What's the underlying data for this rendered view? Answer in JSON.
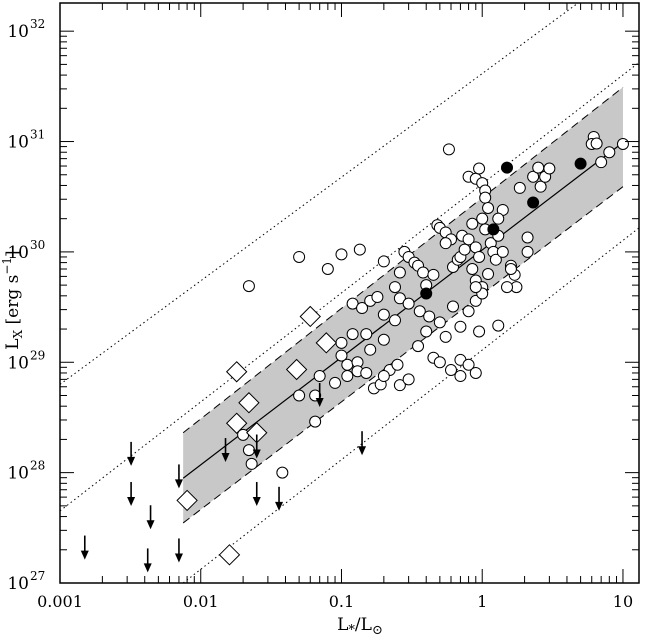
{
  "chart_data": {
    "type": "scatter",
    "title": "",
    "xlabel": "L*/L⊙",
    "ylabel": "L_X [erg s^-1]",
    "x_scale": "log",
    "y_scale": "log",
    "xlim": [
      0.001,
      13
    ],
    "ylim": [
      1e+27,
      1.8e+32
    ],
    "grid": false,
    "legend": "none",
    "x_ticks": [
      {
        "value": 0.001,
        "label": "0.001"
      },
      {
        "value": 0.01,
        "label": "0.01"
      },
      {
        "value": 0.1,
        "label": "0.1"
      },
      {
        "value": 1,
        "label": "1"
      },
      {
        "value": 10,
        "label": "10"
      }
    ],
    "y_ticks": [
      {
        "value": 1e+27,
        "base": "10",
        "exp": "27"
      },
      {
        "value": 1e+28,
        "base": "10",
        "exp": "28"
      },
      {
        "value": 1e+29,
        "base": "10",
        "exp": "29"
      },
      {
        "value": 1e+30,
        "base": "10",
        "exp": "30"
      },
      {
        "value": 1e+31,
        "base": "10",
        "exp": "31"
      },
      {
        "value": 1e+32,
        "base": "10",
        "exp": "32"
      }
    ],
    "fit_line": {
      "x": [
        0.0075,
        10
      ],
      "y": [
        8.9e+27,
        9.8e+30
      ]
    },
    "band": {
      "x": [
        0.0075,
        10
      ],
      "y_low": [
        3.5e+27,
        3.9e+30
      ],
      "y_high": [
        2.3e+28,
        3.1e+31
      ]
    },
    "dotted_lines": [
      {
        "x": [
          0.001,
          4.8
        ],
        "y": [
          6.3e+28,
          1.8e+32
        ]
      },
      {
        "x": [
          0.001,
          13
        ],
        "y": [
          4.5e+27,
          5.2e+31
        ]
      },
      {
        "x": [
          0.0075,
          13
        ],
        "y": [
          1e+27,
          1.65e+30
        ]
      }
    ],
    "series": [
      {
        "marker": "open-circle",
        "points": [
          [
            0.022,
            4.9e+29
          ],
          [
            0.05,
            9e+29
          ],
          [
            0.08,
            7e+29
          ],
          [
            0.1,
            9.5e+29
          ],
          [
            0.135,
            1.05e+30
          ],
          [
            0.2,
            8.2e+29
          ],
          [
            0.24,
            4.8e+29
          ],
          [
            0.28,
            1e+30
          ],
          [
            0.3,
            9e+29
          ],
          [
            0.26,
            6.5e+29
          ],
          [
            0.33,
            8e+29
          ],
          [
            0.35,
            7.5e+29
          ],
          [
            0.38,
            6.5e+29
          ],
          [
            0.4,
            5e+29
          ],
          [
            0.45,
            6.2e+29
          ],
          [
            0.48,
            1.75e+30
          ],
          [
            0.5,
            1.65e+30
          ],
          [
            0.55,
            1.5e+30
          ],
          [
            0.6,
            1.3e+30
          ],
          [
            0.58,
            8.5e+30
          ],
          [
            0.55,
            1.2e+30
          ],
          [
            0.62,
            7.3e+29
          ],
          [
            0.67,
            8.5e+29
          ],
          [
            0.7,
            9e+29
          ],
          [
            0.75,
            1.05e+30
          ],
          [
            0.72,
            1.4e+30
          ],
          [
            0.8,
            1.3e+30
          ],
          [
            0.85,
            1.8e+30
          ],
          [
            0.8,
            4.8e+30
          ],
          [
            0.9,
            4.6e+30
          ],
          [
            0.95,
            5.7e+30
          ],
          [
            1.0,
            4.2e+30
          ],
          [
            1.05,
            3.6e+30
          ],
          [
            1.05,
            3.1e+30
          ],
          [
            1.1,
            2.5e+30
          ],
          [
            1.0,
            2e+30
          ],
          [
            1.05,
            1.6e+30
          ],
          [
            1.15,
            1.2e+30
          ],
          [
            1.2,
            1e+30
          ],
          [
            1.3,
            1.4e+30
          ],
          [
            1.4,
            2.4e+30
          ],
          [
            1.3,
            2e+30
          ],
          [
            0.9,
            1.1e+30
          ],
          [
            0.95,
            9e+29
          ],
          [
            0.85,
            7e+29
          ],
          [
            0.9,
            5.5e+29
          ],
          [
            1.0,
            4.8e+29
          ],
          [
            1.1,
            6.3e+29
          ],
          [
            1.25,
            8.5e+29
          ],
          [
            1.4,
            1e+30
          ],
          [
            1.6,
            7.5e+29
          ],
          [
            1.7,
            6.2e+29
          ],
          [
            1.75,
            4.8e+29
          ],
          [
            1.85,
            3.8e+30
          ],
          [
            2.1,
            1.35e+30
          ],
          [
            2.1,
            1e+30
          ],
          [
            2.3,
            4.8e+30
          ],
          [
            2.5,
            5.8e+30
          ],
          [
            2.6,
            3.9e+30
          ],
          [
            2.8,
            4.8e+30
          ],
          [
            3.0,
            5.7e+30
          ],
          [
            6.2,
            1.1e+31
          ],
          [
            6.0,
            9.5e+30
          ],
          [
            6.5,
            9.6e+30
          ],
          [
            7.0,
            6.5e+30
          ],
          [
            8.0,
            8e+30
          ],
          [
            10.0,
            9.5e+30
          ],
          [
            0.12,
            3.4e+29
          ],
          [
            0.14,
            3.1e+29
          ],
          [
            0.16,
            3.6e+29
          ],
          [
            0.18,
            3.9e+29
          ],
          [
            0.2,
            2.7e+29
          ],
          [
            0.24,
            2.4e+29
          ],
          [
            0.26,
            3.8e+29
          ],
          [
            0.3,
            3.4e+29
          ],
          [
            0.36,
            2.9e+29
          ],
          [
            0.42,
            2.6e+29
          ],
          [
            0.5,
            2.3e+29
          ],
          [
            0.4,
            1.9e+29
          ],
          [
            0.55,
            1.7e+29
          ],
          [
            0.62,
            3.2e+29
          ],
          [
            0.7,
            2.1e+29
          ],
          [
            0.8,
            2.9e+29
          ],
          [
            0.9,
            3.6e+29
          ],
          [
            1.0,
            4.2e+29
          ],
          [
            0.9,
            4.8e+29
          ],
          [
            0.95,
            1.9e+29
          ],
          [
            0.12,
            1.8e+29
          ],
          [
            0.1,
            1.5e+29
          ],
          [
            0.1,
            1.15e+29
          ],
          [
            0.11,
            9.5e+28
          ],
          [
            0.13,
            1e+29
          ],
          [
            0.16,
            1.3e+29
          ],
          [
            0.15,
            1.8e+29
          ],
          [
            0.2,
            1.6e+29
          ],
          [
            0.22,
            8.5e+28
          ],
          [
            0.25,
            9.5e+28
          ],
          [
            0.35,
            1.4e+29
          ],
          [
            0.45,
            1.1e+29
          ],
          [
            0.5,
            1e+29
          ],
          [
            0.6,
            8.5e+28
          ],
          [
            0.7,
            1.05e+29
          ],
          [
            0.8,
            9.5e+28
          ],
          [
            0.7,
            7.5e+28
          ],
          [
            0.9,
            8e+28
          ],
          [
            0.17,
            5.8e+28
          ],
          [
            0.19,
            6.3e+28
          ],
          [
            0.2,
            7.5e+28
          ],
          [
            0.26,
            6.2e+28
          ],
          [
            0.3,
            7e+28
          ],
          [
            0.07,
            7.5e+28
          ],
          [
            0.05,
            5e+28
          ],
          [
            0.065,
            5e+28
          ],
          [
            0.09,
            6.5e+28
          ],
          [
            0.11,
            7.5e+28
          ],
          [
            0.13,
            8.3e+28
          ],
          [
            0.15,
            8e+28
          ],
          [
            0.065,
            2.9e+28
          ],
          [
            0.02,
            2.2e+28
          ],
          [
            0.022,
            1.6e+28
          ],
          [
            0.023,
            1.2e+28
          ],
          [
            0.038,
            1e+28
          ],
          [
            1.3,
            2.15e+29
          ],
          [
            1.5,
            4.8e+29
          ],
          [
            1.6,
            7e+29
          ]
        ]
      },
      {
        "marker": "filled-circle",
        "points": [
          [
            0.4,
            4.2e+29
          ],
          [
            1.2,
            1.6e+30
          ],
          [
            1.5,
            5.8e+30
          ],
          [
            2.3,
            2.8e+30
          ],
          [
            5.0,
            6.3e+30
          ]
        ]
      },
      {
        "marker": "open-diamond",
        "points": [
          [
            0.008,
            5.6e+27
          ],
          [
            0.016,
            1.8e+27
          ],
          [
            0.018,
            2.8e+28
          ],
          [
            0.018,
            8.2e+28
          ],
          [
            0.022,
            4.3e+28
          ],
          [
            0.025,
            2.3e+28
          ],
          [
            0.048,
            8.6e+28
          ],
          [
            0.06,
            2.6e+29
          ],
          [
            0.078,
            1.5e+29
          ]
        ]
      },
      {
        "marker": "upper-limit-arrow",
        "points": [
          [
            0.0015,
            1.7e+27
          ],
          [
            0.0032,
            1.2e+28
          ],
          [
            0.0032,
            5.2e+27
          ],
          [
            0.0044,
            3.2e+27
          ],
          [
            0.0042,
            1.3e+27
          ],
          [
            0.007,
            1.6e+27
          ],
          [
            0.007,
            7.5e+27
          ],
          [
            0.015,
            1.3e+28
          ],
          [
            0.025,
            1.4e+28
          ],
          [
            0.025,
            5.2e+27
          ],
          [
            0.036,
            4.7e+27
          ],
          [
            0.07,
            4.1e+28
          ],
          [
            0.14,
            1.5e+28
          ]
        ]
      }
    ]
  }
}
